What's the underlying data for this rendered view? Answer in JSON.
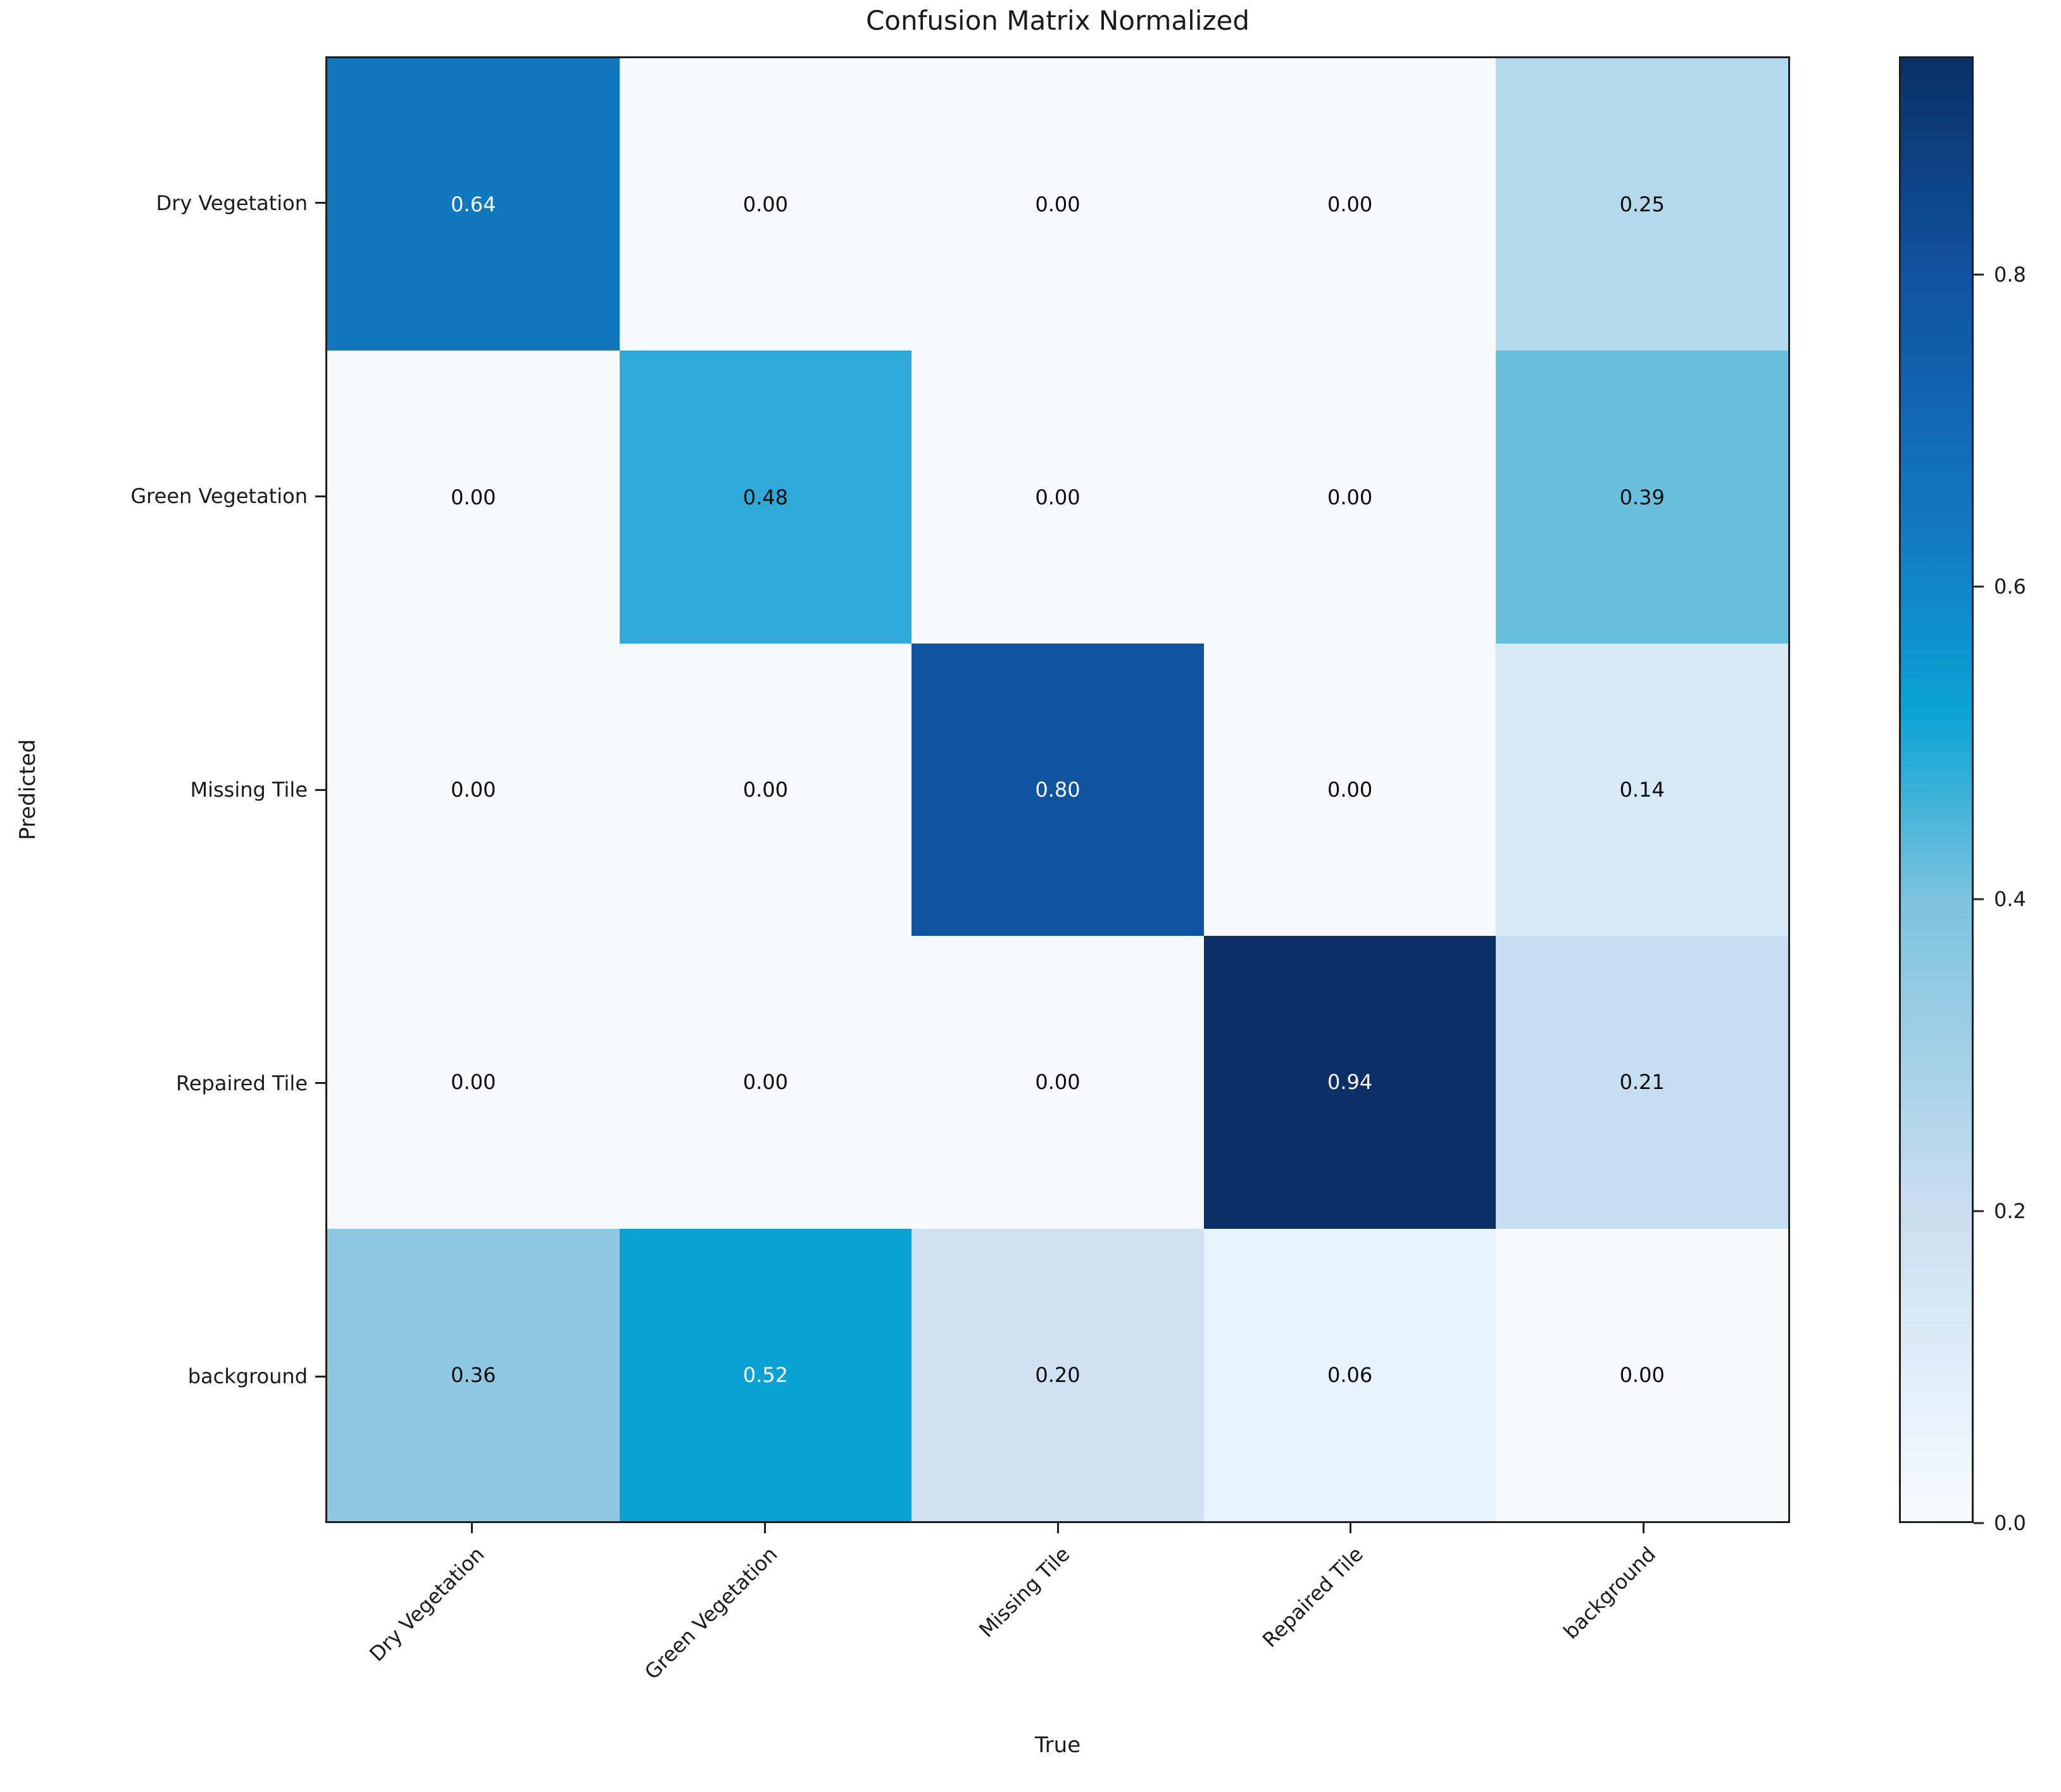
{
  "chart_data": {
    "type": "heatmap",
    "title": "Confusion Matrix Normalized",
    "xlabel": "True",
    "ylabel": "Predicted",
    "x_categories": [
      "Dry Vegetation",
      "Green Vegetation",
      "Missing Tile",
      "Repaired Tile",
      "background"
    ],
    "y_categories": [
      "Dry Vegetation",
      "Green Vegetation",
      "Missing Tile",
      "Repaired Tile",
      "background"
    ],
    "values": [
      [
        0.64,
        0.0,
        0.0,
        0.0,
        0.25
      ],
      [
        0.0,
        0.48,
        0.0,
        0.0,
        0.39
      ],
      [
        0.0,
        0.0,
        0.8,
        0.0,
        0.14
      ],
      [
        0.0,
        0.0,
        0.0,
        0.94,
        0.21
      ],
      [
        0.36,
        0.52,
        0.2,
        0.06,
        0.0
      ]
    ],
    "cell_colors": [
      [
        "#1178bd",
        "#f6fafe",
        "#f6fafe",
        "#f6fafe",
        "#b4d8ec"
      ],
      [
        "#f6fafe",
        "#2fa9d8",
        "#f6fafe",
        "#f6fafe",
        "#69c0de"
      ],
      [
        "#f6fafe",
        "#f6fafe",
        "#1054a1",
        "#f6fafe",
        "#d7e9f6"
      ],
      [
        "#f6fafe",
        "#f6fafe",
        "#f6fafe",
        "#0b3067",
        "#c6dff0"
      ],
      [
        "#8fc8e1",
        "#09a2d3",
        "#cfe1f2",
        "#e8f2fb",
        "#f6fafe"
      ]
    ],
    "vmin": 0.0,
    "vmax": 0.94,
    "colormap": "Blues",
    "grid": false,
    "legend_position": "right-colorbar",
    "colorbar_ticks": [
      {
        "label": "0.0",
        "value": 0.0
      },
      {
        "label": "0.2",
        "value": 0.2
      },
      {
        "label": "0.4",
        "value": 0.4
      },
      {
        "label": "0.6",
        "value": 0.6
      },
      {
        "label": "0.8",
        "value": 0.8
      }
    ]
  },
  "style": {
    "dark_text": "#0a0a0a",
    "light_text": "#ffffff",
    "light_text_threshold": 0.5,
    "spine_color": "#1f1f1f",
    "background": "#ffffff",
    "colorbar_stops": [
      [
        0.0,
        "#f7fbff"
      ],
      [
        0.213,
        "#cadef0"
      ],
      [
        0.425,
        "#7cc3de"
      ],
      [
        0.553,
        "#0ba3d4"
      ],
      [
        0.68,
        "#1379bf"
      ],
      [
        0.851,
        "#1053a0"
      ],
      [
        1.0,
        "#0b3067"
      ]
    ]
  }
}
